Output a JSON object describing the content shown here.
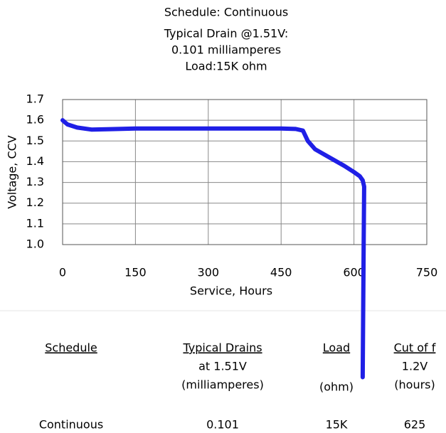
{
  "chart_data": {
    "type": "line",
    "title_lines": [
      "Schedule: Continuous",
      "Typical Drain @1.51V:",
      "0.101 milliamperes",
      "Load:15K ohm"
    ],
    "xlabel": "Service, Hours",
    "ylabel": "Voltage, CCV",
    "x": [
      0,
      10,
      30,
      60,
      100,
      150,
      300,
      450,
      480,
      495,
      505,
      520,
      550,
      580,
      600,
      612,
      618,
      621,
      620,
      618
    ],
    "series": [
      {
        "name": "Continuous",
        "color": "#1f1fe6",
        "values": [
          1.6,
          1.58,
          1.565,
          1.555,
          1.557,
          1.56,
          1.56,
          1.56,
          1.558,
          1.55,
          1.5,
          1.46,
          1.42,
          1.38,
          1.35,
          1.33,
          1.31,
          1.28,
          1.0,
          0.36
        ]
      }
    ],
    "xlim": [
      0,
      750
    ],
    "xticks": [
      0,
      150,
      300,
      450,
      600,
      750
    ],
    "ylim": [
      1,
      1.7
    ],
    "yticks": [
      {
        "value": 1,
        "label": "1.0"
      },
      1.1,
      1.2,
      1.3,
      1.4,
      1.5,
      1.6,
      1.7
    ],
    "grid": true
  },
  "table": {
    "columns": [
      {
        "header": "Schedule",
        "sub": []
      },
      {
        "header": "Typical Drains",
        "sub": [
          "at 1.51V",
          "(milliamperes)"
        ]
      },
      {
        "header": "Load",
        "sub": [
          "(ohm)"
        ]
      },
      {
        "header": "Cut of f",
        "sub": [
          "1.2V",
          "(hours)"
        ]
      }
    ],
    "rows": [
      [
        "Continuous",
        "0.101",
        "15K",
        "625"
      ]
    ]
  }
}
